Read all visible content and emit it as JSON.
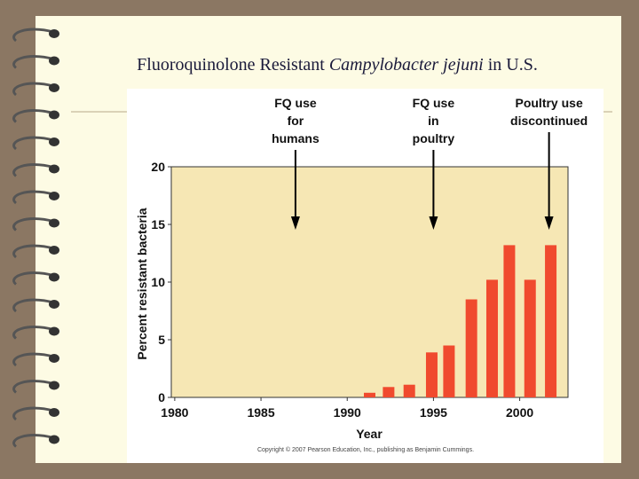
{
  "slide_title": {
    "before": "Fluoroquinolone Resistant ",
    "italic": "Campylobacter jejuni",
    "after": " in U.S."
  },
  "chart_data": {
    "type": "bar",
    "xlabel": "Year",
    "ylabel": "Percent resistant bacteria",
    "x": [
      1991.3,
      1992.4,
      1993.6,
      1994.9,
      1995.9,
      1997.2,
      1998.4,
      1999.4,
      2000.6,
      2001.8
    ],
    "values": [
      0.4,
      0.9,
      1.1,
      3.9,
      4.5,
      8.5,
      10.2,
      13.2,
      10.2,
      13.2
    ],
    "color": "#f04a2e",
    "xlim": [
      1979.8,
      2002.8
    ],
    "xticks": [
      1980,
      1985,
      1990,
      1995,
      2000
    ],
    "ylim": [
      0,
      20
    ],
    "yticks": [
      0,
      5,
      10,
      15,
      20
    ],
    "annotations": [
      {
        "lines": [
          "FQ use",
          "for",
          "humans"
        ],
        "x": 1987
      },
      {
        "lines": [
          "FQ use",
          "in",
          "poultry"
        ],
        "x": 1995
      },
      {
        "lines": [
          "Poultry use",
          "discontinued"
        ],
        "x": 2001.7
      }
    ],
    "source": "Copyright © 2007 Pearson Education, Inc., publishing as Benjamin Cummings."
  }
}
